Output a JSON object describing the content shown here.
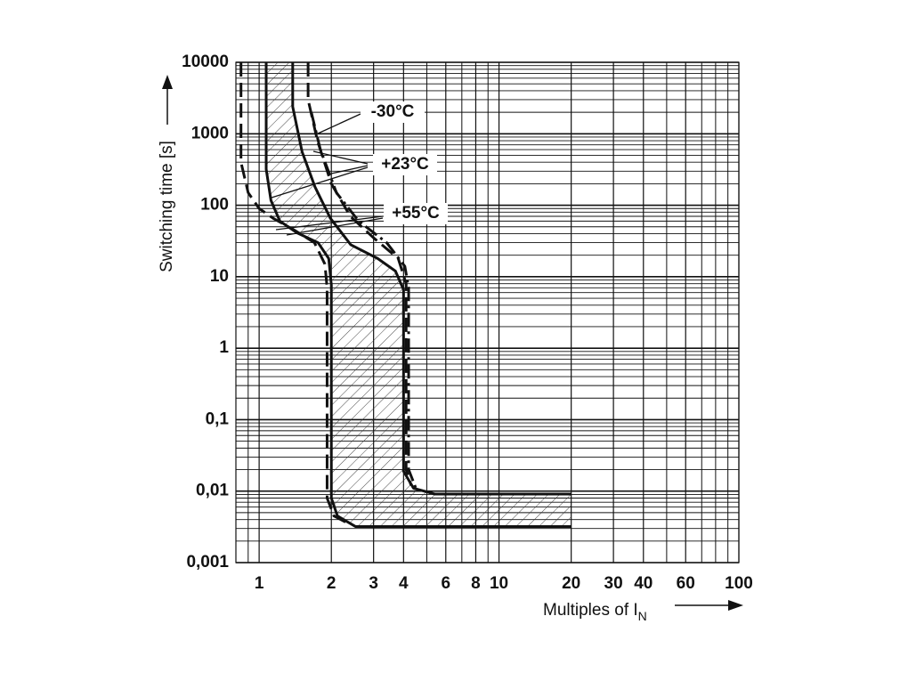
{
  "chart_data": {
    "type": "line",
    "xscale": "log",
    "yscale": "log",
    "xlabel": "Multiples of I",
    "xlabel_sub": "N",
    "ylabel": "Switching time [s]",
    "xlim": [
      0.8,
      100
    ],
    "ylim": [
      0.001,
      10000
    ],
    "xticks": [
      1,
      2,
      3,
      4,
      6,
      8,
      10,
      20,
      30,
      40,
      60,
      100
    ],
    "xminor": [
      0.8,
      0.9,
      5,
      7,
      9,
      50,
      70,
      80,
      90
    ],
    "yticks": [
      {
        "value": 0.001,
        "label": "0,001"
      },
      {
        "value": 0.01,
        "label": "0,01"
      },
      {
        "value": 0.1,
        "label": "0,1"
      },
      1,
      10,
      100,
      1000,
      10000
    ],
    "yminor": [
      0.002,
      0.003,
      0.004,
      0.005,
      0.006,
      0.007,
      0.008,
      0.009,
      0.02,
      0.03,
      0.04,
      0.05,
      0.06,
      0.07,
      0.08,
      0.09,
      0.2,
      0.3,
      0.4,
      0.5,
      0.6,
      0.7,
      0.8,
      0.9,
      2,
      3,
      4,
      5,
      6,
      7,
      8,
      9,
      20,
      30,
      40,
      50,
      60,
      70,
      80,
      90,
      200,
      300,
      400,
      500,
      600,
      700,
      800,
      900,
      2000,
      3000,
      4000,
      5000,
      6000,
      7000,
      8000,
      9000
    ],
    "grid": true,
    "band": [
      0,
      1
    ],
    "series": [
      {
        "style": "solid",
        "color": "#111111",
        "x": [
          1.07,
          1.07,
          1.12,
          1.22,
          1.44,
          1.76,
          1.95,
          2.0,
          2.0,
          2.12,
          2.52,
          20
        ],
        "values": [
          10000,
          320,
          117,
          60,
          41,
          30,
          18,
          7.7,
          0.008,
          0.0045,
          0.0032,
          0.0032
        ]
      },
      {
        "style": "solid",
        "color": "#111111",
        "x": [
          1.38,
          1.38,
          1.51,
          1.71,
          1.98,
          2.41,
          3.12,
          3.7,
          4.0,
          4.0,
          4.4,
          5.4,
          20
        ],
        "values": [
          10000,
          2400,
          560,
          180,
          66,
          28,
          18,
          12,
          6.6,
          0.019,
          0.011,
          0.0091,
          0.0091
        ]
      },
      {
        "style": "dashed",
        "color": "#111111",
        "x": [
          0.84,
          0.84,
          0.9,
          1.0,
          1.15,
          1.4,
          1.7,
          1.88,
          1.92,
          1.92,
          2.05,
          2.4
        ],
        "values": [
          10000,
          400,
          150,
          90,
          65,
          45,
          30,
          15,
          7,
          0.008,
          0.0045,
          0.0034
        ]
      },
      {
        "style": "dashed",
        "color": "#111111",
        "x": [
          1.6,
          1.6,
          1.75,
          2.0,
          2.4,
          3.0,
          3.8,
          4.1,
          4.1,
          4.3
        ],
        "values": [
          10000,
          3000,
          800,
          200,
          70,
          35,
          18,
          8,
          0.02,
          0.012
        ]
      },
      {
        "style": "dashdot",
        "color": "#111111",
        "x": [
          1.65,
          1.8,
          2.1,
          2.6,
          3.4,
          4.05,
          4.2,
          4.2,
          4.5
        ],
        "values": [
          2000,
          600,
          150,
          60,
          30,
          14,
          7,
          0.02,
          0.011
        ]
      }
    ],
    "annotations": [
      {
        "text": "-30°C"
      },
      {
        "text": "+23°C"
      },
      {
        "text": "+55°C"
      }
    ]
  }
}
